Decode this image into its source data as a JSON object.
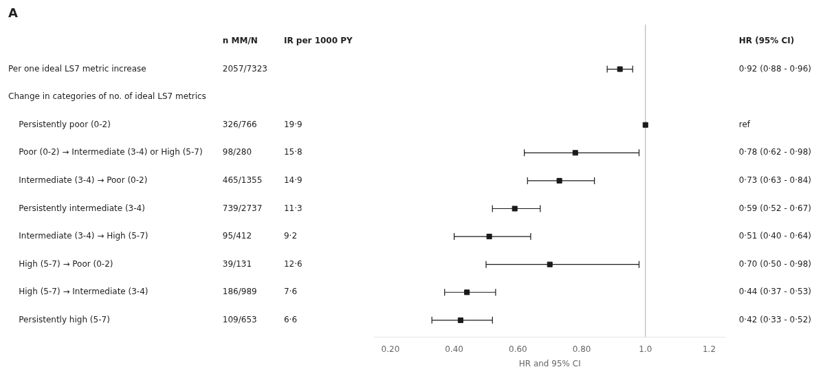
{
  "chart_data": {
    "type": "forest",
    "title": "A",
    "x_label": "HR and 95% CI",
    "categories": [
      "Per one ideal LS7 metric increase",
      "Change in categories of no. of ideal LS7 metrics",
      "    Persistently poor (0-2)",
      "    Poor (0-2) → Intermediate (3-4) or High (5-7)",
      "    Intermediate (3-4) → Poor (0-2)",
      "    Persistently intermediate (3-4)",
      "    Intermediate (3-4) → High (5-7)",
      "    High (5-7) → Poor (0-2)",
      "    High (5-7) → Intermediate (3-4)",
      "    Persistently high (5-7)"
    ],
    "values": [
      0.92,
      null,
      1.0,
      0.78,
      0.73,
      0.59,
      0.51,
      0.7,
      0.44,
      0.42
    ],
    "ci_lo": [
      0.88,
      null,
      null,
      0.62,
      0.63,
      0.52,
      0.4,
      0.5,
      0.37,
      0.33
    ],
    "ci_hi": [
      0.96,
      null,
      null,
      0.98,
      0.84,
      0.67,
      0.64,
      0.98,
      0.53,
      0.52
    ],
    "columns": [
      {
        "header": "n MM/N",
        "values": [
          "2057/7323",
          null,
          "326/766",
          "98/280",
          "465/1355",
          "739/2737",
          "95/412",
          "39/131",
          "186/989",
          "109/653"
        ]
      },
      {
        "header": "IR per 1000 PY",
        "values": [
          null,
          null,
          "19·9",
          "15·8",
          "14·9",
          "11·3",
          "9·2",
          "12·6",
          "7·6",
          "6·6"
        ]
      },
      {
        "header": "HR (95% CI)",
        "values": [
          "0·92 (0·88 - 0·96)",
          null,
          "ref",
          "0·78 (0·62 - 0·98)",
          "0·73 (0·63 - 0·84)",
          "0·59 (0·52 - 0·67)",
          "0·51 (0·40 - 0·64)",
          "0·70 (0·50 - 0·98)",
          "0·44 (0·37 - 0·53)",
          "0·42 (0·33 - 0·52)"
        ]
      }
    ],
    "reference_line": 1.0,
    "xlim": [
      0.15,
      1.25
    ],
    "xticks": [
      {
        "value": 0.2,
        "label": "0.20"
      },
      {
        "value": 0.4,
        "label": "0.40"
      },
      {
        "value": 0.6,
        "label": "0.60"
      },
      {
        "value": 0.8,
        "label": "0.80"
      },
      {
        "value": 1.0,
        "label": "1.0"
      },
      1.2
    ],
    "grid": false,
    "color": "#1a1a1a"
  }
}
